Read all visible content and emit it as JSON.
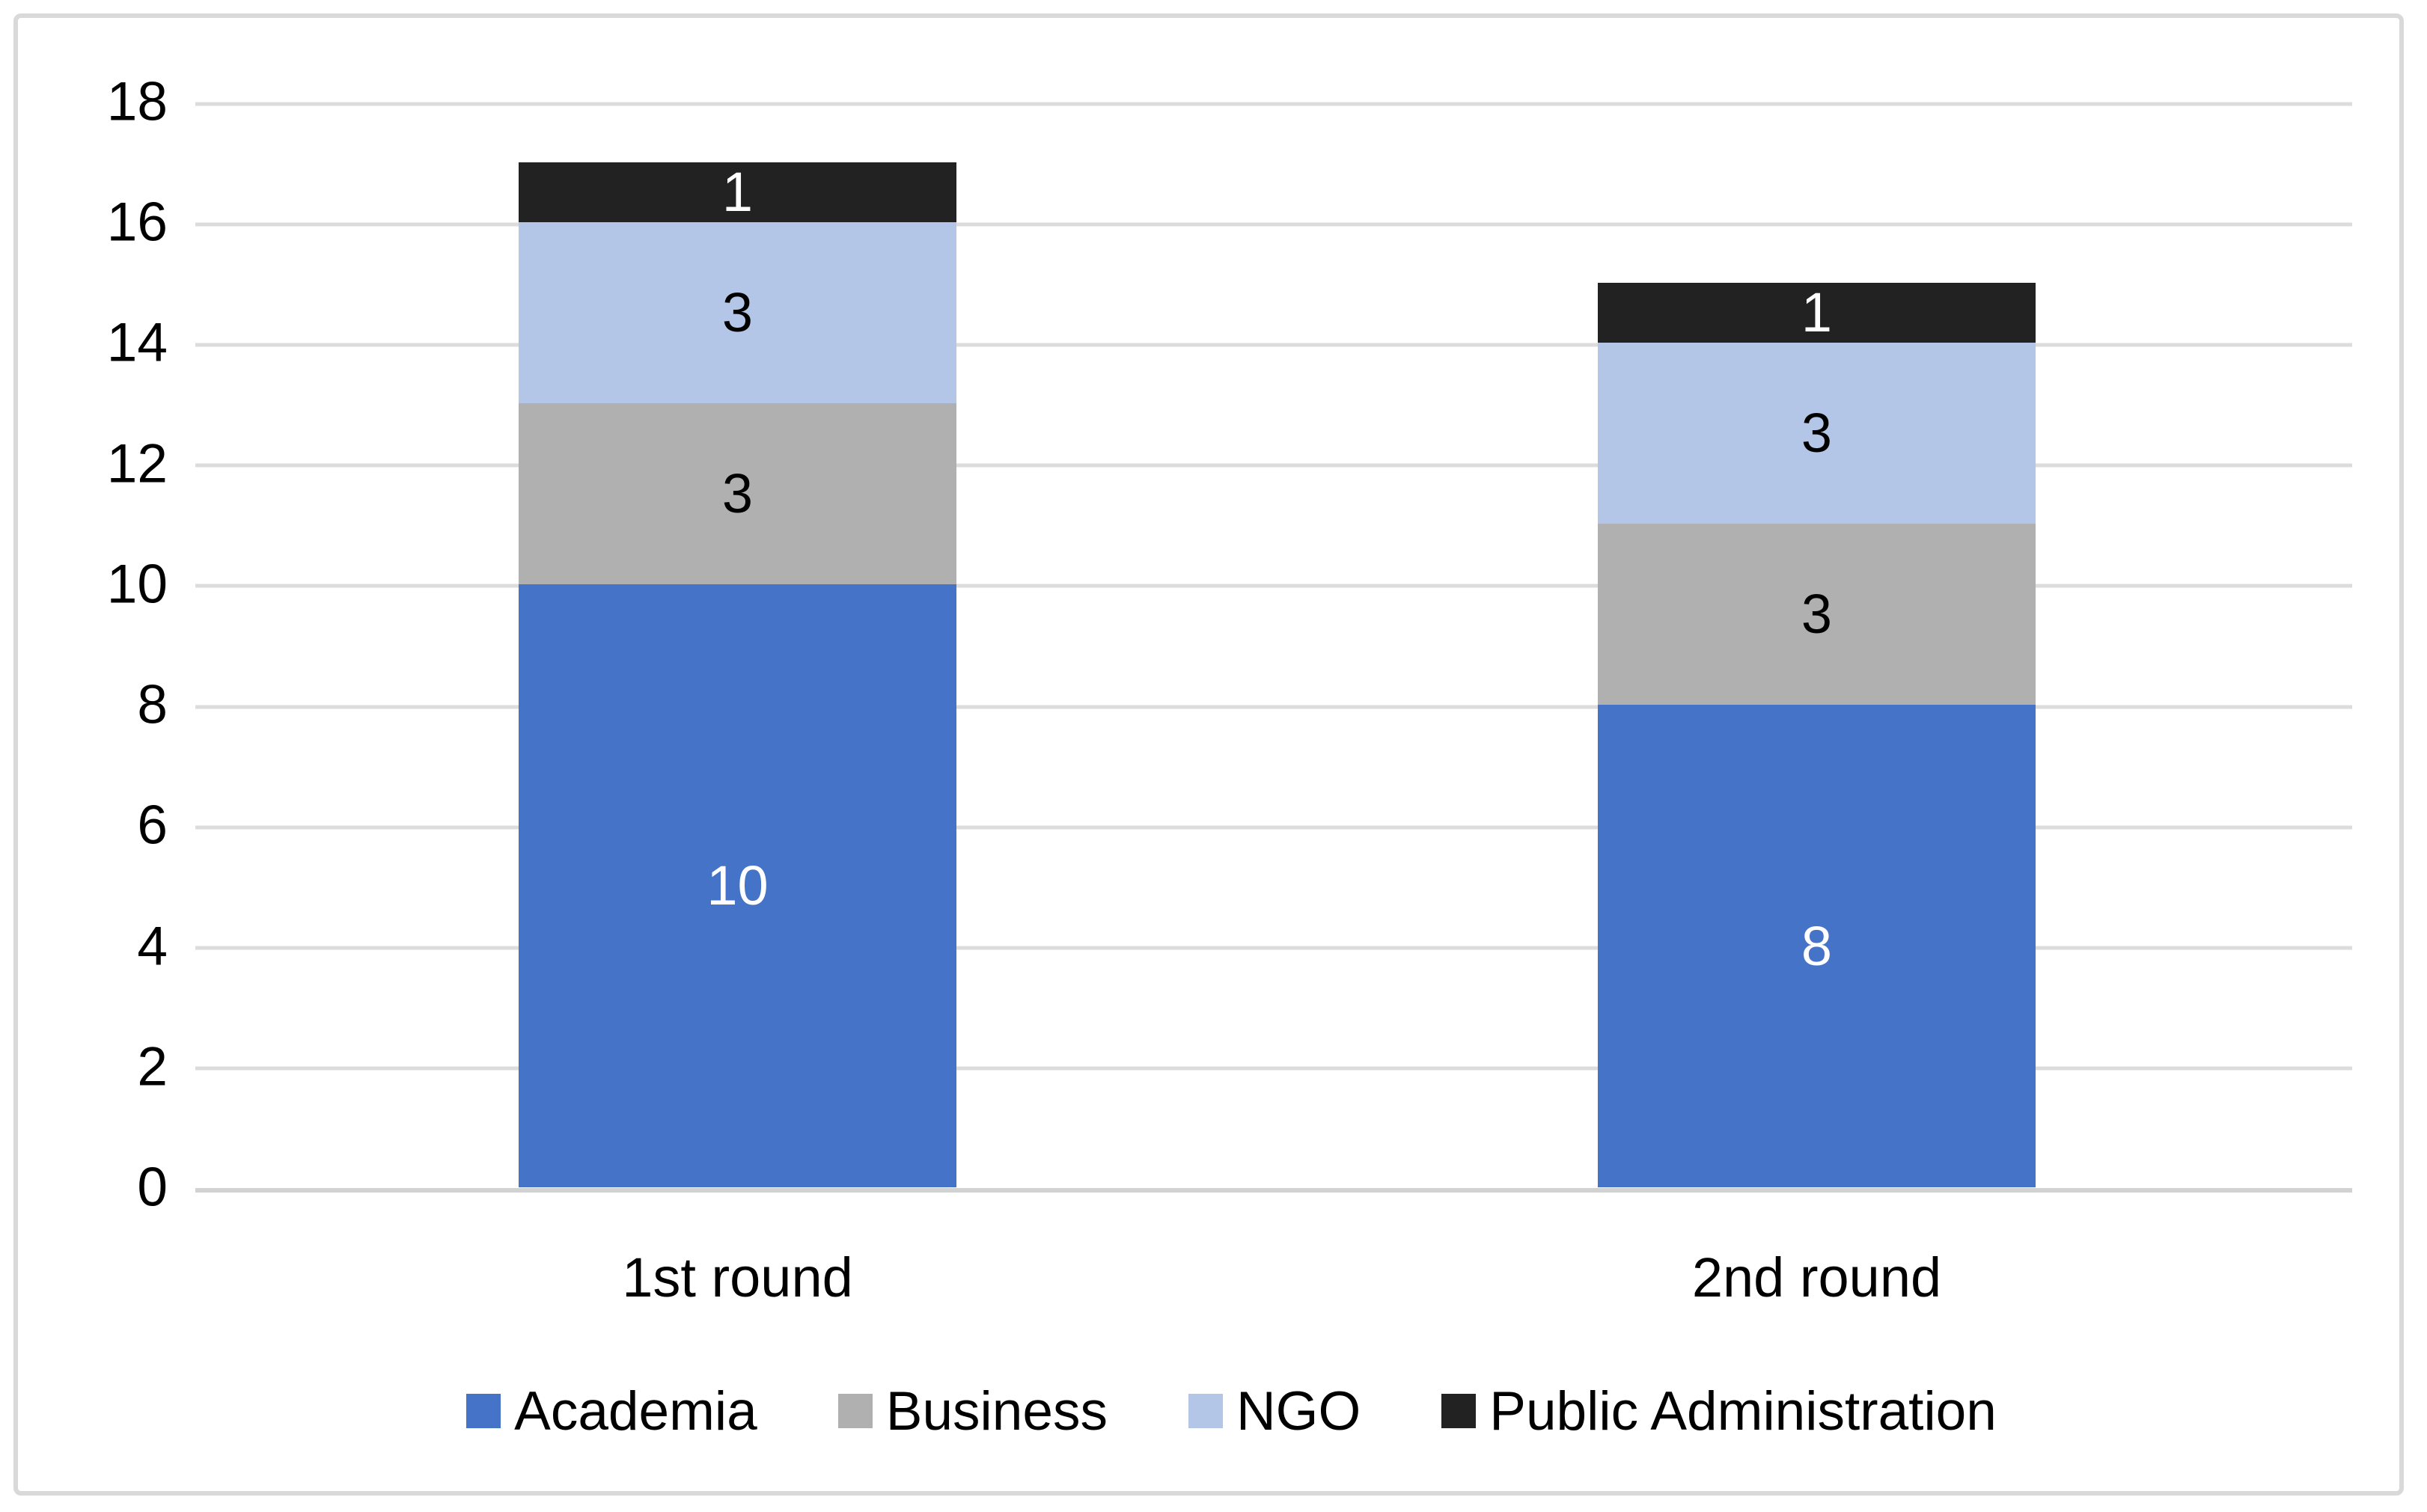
{
  "chart_data": {
    "type": "bar",
    "subtype": "stacked-column",
    "title": "",
    "xlabel": "",
    "ylabel": "",
    "categories": [
      "1st round",
      "2nd round"
    ],
    "series": [
      {
        "name": "Academia",
        "values": [
          10,
          8
        ],
        "color": "#4473C7",
        "label_color": "#FFFFFF"
      },
      {
        "name": "Business",
        "values": [
          3,
          3
        ],
        "color": "#B0B0B0",
        "label_color": "#000000"
      },
      {
        "name": "NGO",
        "values": [
          3,
          3
        ],
        "color": "#B4C6E7",
        "label_color": "#000000"
      },
      {
        "name": "Public Administration",
        "values": [
          1,
          1
        ],
        "color": "#222222",
        "label_color": "#FFFFFF"
      }
    ],
    "totals": [
      17,
      15
    ],
    "ylim": [
      0,
      18
    ],
    "yticks": [
      0,
      2,
      4,
      6,
      8,
      10,
      12,
      14,
      16,
      18
    ],
    "grid": true,
    "gridline_color": "#DCDCDC",
    "axis_line_color": "#D2D2D2",
    "frame_border_color": "#D9D9D9",
    "legend_position": "bottom",
    "data_labels_visible": true
  }
}
